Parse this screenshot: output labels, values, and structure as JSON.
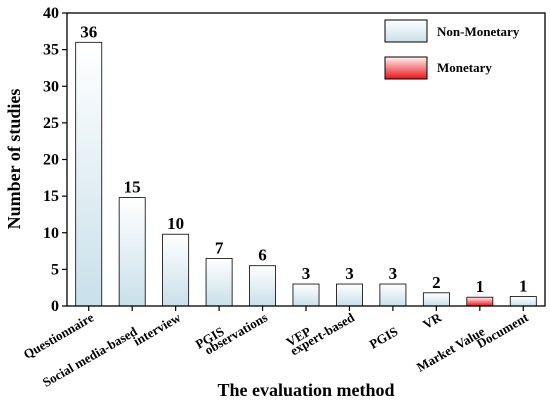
{
  "chart_data": {
    "type": "bar",
    "xlabel": "The evaluation method",
    "ylabel": "Number of studies",
    "ylim": [
      0,
      40
    ],
    "yticks": [
      0,
      5,
      10,
      15,
      20,
      25,
      30,
      35,
      40
    ],
    "grid": false,
    "legend_position": "top-right",
    "categories": [
      "Questionnaire",
      "Social media-based",
      "interview",
      "PGIS",
      "observations",
      "VEP",
      "expert-based",
      "PGIS",
      "VR",
      "Market Value",
      "Document"
    ],
    "values": [
      36,
      15,
      10,
      7,
      6,
      3,
      3,
      3,
      2,
      1,
      1
    ],
    "bar_heights": [
      36,
      14.8,
      9.8,
      6.5,
      5.5,
      3,
      3,
      3,
      1.8,
      1.2,
      1.3
    ],
    "value_labels": [
      "36",
      "15",
      "10",
      "7",
      "6",
      "3",
      "3",
      "3",
      "2",
      "1",
      "1"
    ],
    "group": [
      "Non-Monetary",
      "Non-Monetary",
      "Non-Monetary",
      "Non-Monetary",
      "Non-Monetary",
      "Non-Monetary",
      "Non-Monetary",
      "Non-Monetary",
      "Non-Monetary",
      "Monetary",
      "Non-Monetary"
    ],
    "legend": [
      {
        "key": "Non-Monetary",
        "label": "Non-Monetary",
        "color_top": "#ffffff",
        "color_bottom": "#c9e0ea"
      },
      {
        "key": "Monetary",
        "label": "Monetary",
        "color_top": "#fff2f2",
        "color_bottom": "#e8141c"
      }
    ]
  }
}
